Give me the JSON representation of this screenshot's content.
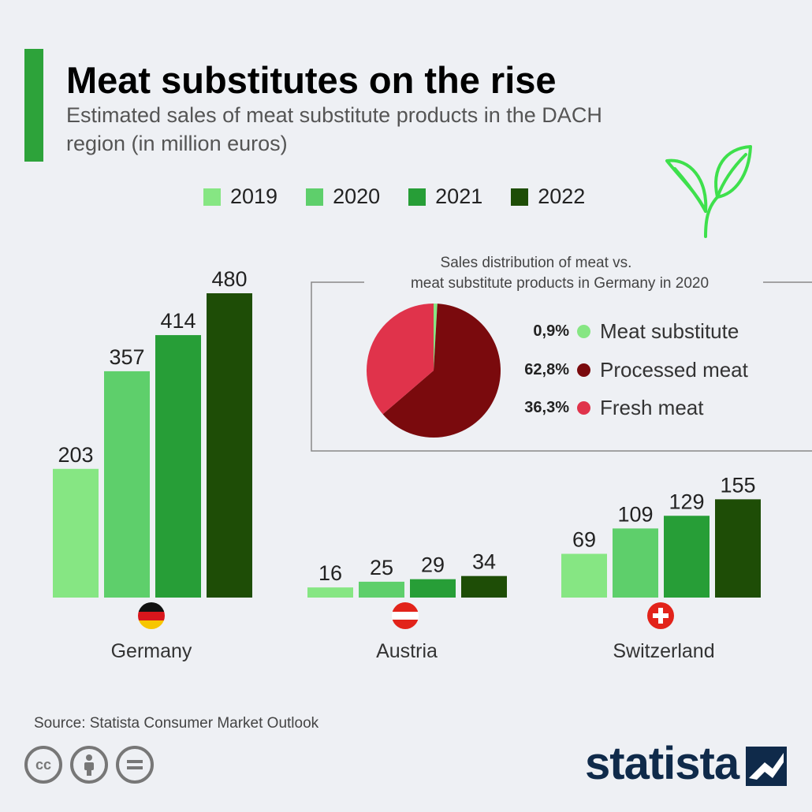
{
  "header": {
    "title": "Meat substitutes on the rise",
    "subtitle": "Estimated sales of meat substitute products in the DACH region (in million euros)"
  },
  "colors": {
    "accent": "#2da33a",
    "y2019": "#86e683",
    "y2020": "#5ecf6b",
    "y2021": "#279e37",
    "y2022": "#1e4d06"
  },
  "chart_data": [
    {
      "type": "bar",
      "categories": [
        "Germany",
        "Austria",
        "Switzerland"
      ],
      "series": [
        {
          "name": "2019",
          "values": [
            203,
            16,
            69
          ],
          "color": "#86e683"
        },
        {
          "name": "2020",
          "values": [
            357,
            25,
            109
          ],
          "color": "#5ecf6b"
        },
        {
          "name": "2021",
          "values": [
            414,
            29,
            129
          ],
          "color": "#279e37"
        },
        {
          "name": "2022",
          "values": [
            480,
            34,
            155
          ],
          "color": "#1e4d06"
        }
      ],
      "legend_position": "top",
      "grid": false
    },
    {
      "type": "pie",
      "title_lines": [
        "Sales distribution of meat vs.",
        "meat substitute products in Germany in 2020"
      ],
      "slices": [
        {
          "label": "Meat substitute",
          "value": 0.9,
          "pct_label": "0,9%",
          "color": "#86e683"
        },
        {
          "label": "Processed meat",
          "value": 62.8,
          "pct_label": "62,8%",
          "color": "#7a0a0d"
        },
        {
          "label": "Fresh meat",
          "value": 36.3,
          "pct_label": "36,3%",
          "color": "#e0334b"
        }
      ]
    }
  ],
  "flags": [
    "germany-flag",
    "austria-flag",
    "switzerland-flag"
  ],
  "footer": {
    "source": "Source: Statista Consumer Market Outlook",
    "brand": "statista",
    "license_icons": [
      "cc-icon",
      "by-icon",
      "nd-icon"
    ]
  }
}
